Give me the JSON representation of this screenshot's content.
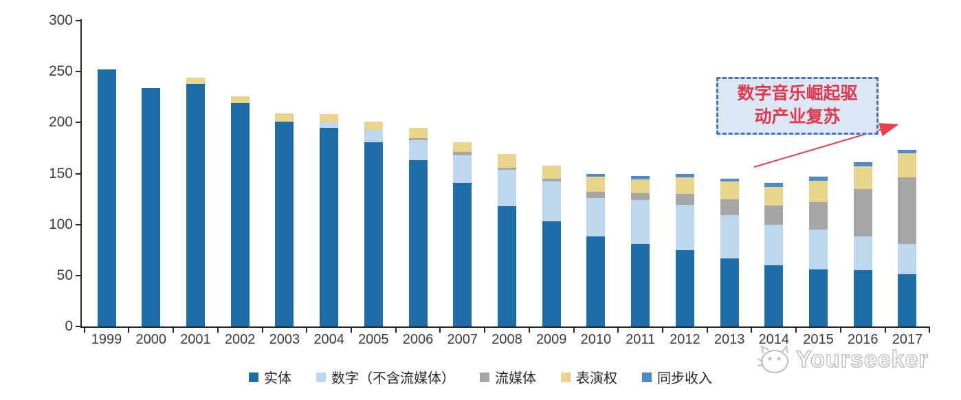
{
  "chart_data": {
    "type": "bar",
    "stacked": true,
    "categories": [
      "1999",
      "2000",
      "2001",
      "2002",
      "2003",
      "2004",
      "2005",
      "2006",
      "2007",
      "2008",
      "2009",
      "2010",
      "2011",
      "2012",
      "2013",
      "2014",
      "2015",
      "2016",
      "2017"
    ],
    "series": [
      {
        "name": "实体",
        "color": "#1F6DA8",
        "values": [
          252,
          234,
          238,
          219,
          201,
          195,
          181,
          163,
          141,
          118,
          103,
          88,
          81,
          75,
          67,
          60,
          56,
          55,
          51
        ]
      },
      {
        "name": "数字（不含流媒体）",
        "color": "#BDD7EE",
        "values": [
          0,
          0,
          0,
          0,
          0,
          5,
          12,
          20,
          27,
          36,
          39,
          38,
          43,
          44,
          42,
          40,
          39,
          33,
          30
        ]
      },
      {
        "name": "流媒体",
        "color": "#A6A6A6",
        "values": [
          0,
          0,
          0,
          0,
          0,
          0,
          0,
          2,
          3,
          2,
          3,
          6,
          7,
          11,
          16,
          19,
          27,
          47,
          65
        ]
      },
      {
        "name": "表演权",
        "color": "#E8D48B",
        "values": [
          0,
          0,
          6,
          7,
          8,
          8,
          8,
          10,
          10,
          13,
          13,
          15,
          13,
          16,
          17,
          18,
          21,
          22,
          24
        ]
      },
      {
        "name": "同步收入",
        "color": "#4E8ACB",
        "values": [
          0,
          0,
          0,
          0,
          0,
          0,
          0,
          0,
          0,
          0,
          0,
          3,
          4,
          4,
          3,
          4,
          4,
          4,
          3
        ]
      }
    ],
    "ylim": [
      0,
      300
    ],
    "yticks": [
      0,
      50,
      100,
      150,
      200,
      250,
      300
    ],
    "grid": false,
    "legend_position": "bottom"
  },
  "annotation": {
    "line1": "数字音乐崛起驱",
    "line2": "动产业复苏",
    "text_color": "#E2384C"
  },
  "watermark": {
    "text": "Yourseeker",
    "logo": "cat-logo-icon"
  },
  "colors": {
    "axis": "#262626",
    "labels": "#3B3B3B",
    "annotation_border": "#4472C4",
    "annotation_bg": "#DBE7F5",
    "arrow": "#E8404F"
  }
}
